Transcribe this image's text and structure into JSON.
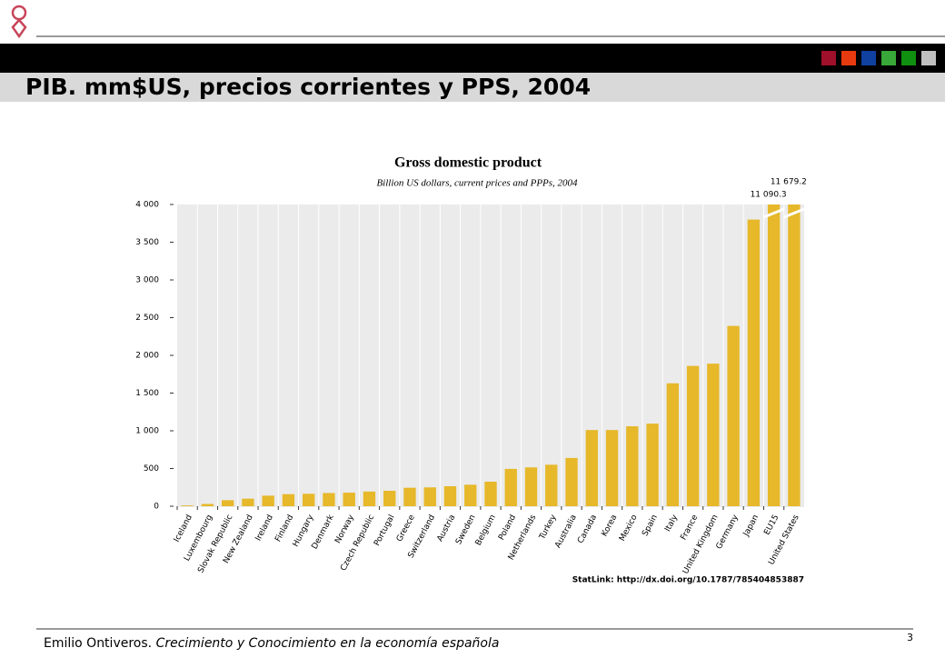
{
  "header": {
    "title": "PIB. mm$US, precios corrientes y PPS, 2004"
  },
  "footer": {
    "author": "Emilio Ontiveros.",
    "text": "Crecimiento y Conocimiento en  la economía española",
    "page": "3"
  },
  "chart_data": {
    "type": "bar",
    "title": "Gross domestic product",
    "subtitle": "Billion US dollars, current prices and PPPs, 2004",
    "note": "StatLink: http://dx.doi.org/10.1787/785404853887",
    "categories": [
      "Iceland",
      "Luxembourg",
      "Slovak Republic",
      "New Zealand",
      "Ireland",
      "Finland",
      "Hungary",
      "Denmark",
      "Norway",
      "Czech Republic",
      "Portugal",
      "Greece",
      "Switzerland",
      "Austria",
      "Sweden",
      "Belgium",
      "Poland",
      "Netherlands",
      "Turkey",
      "Australia",
      "Canada",
      "Korea",
      "Mexico",
      "Spain",
      "Italy",
      "France",
      "United Kingdom",
      "Germany",
      "Japan",
      "EU15",
      "United States"
    ],
    "values": [
      10,
      30,
      80,
      100,
      140,
      160,
      165,
      175,
      180,
      195,
      205,
      245,
      250,
      265,
      285,
      325,
      495,
      515,
      550,
      640,
      1010,
      1010,
      1060,
      1095,
      1630,
      1860,
      1890,
      2390,
      3800,
      11090.3,
      11679.2
    ],
    "value_labels": [
      null,
      null,
      null,
      null,
      null,
      null,
      null,
      null,
      null,
      null,
      null,
      null,
      null,
      null,
      null,
      null,
      null,
      null,
      null,
      null,
      null,
      null,
      null,
      null,
      null,
      null,
      null,
      null,
      null,
      "11 090.3",
      "11 679.2"
    ],
    "color": "#e6b82a",
    "ylim": [
      0,
      4000
    ],
    "yticks": [
      0,
      500,
      {
        "value": 1000,
        "label": "1 000"
      },
      {
        "value": 1500,
        "label": "1 500"
      },
      {
        "value": 2000,
        "label": "2 000"
      },
      {
        "value": 2500,
        "label": "2 500"
      },
      {
        "value": 3000,
        "label": "3 000"
      },
      {
        "value": 3500,
        "label": "3 500"
      },
      {
        "value": 4000,
        "label": "4 000"
      }
    ]
  }
}
